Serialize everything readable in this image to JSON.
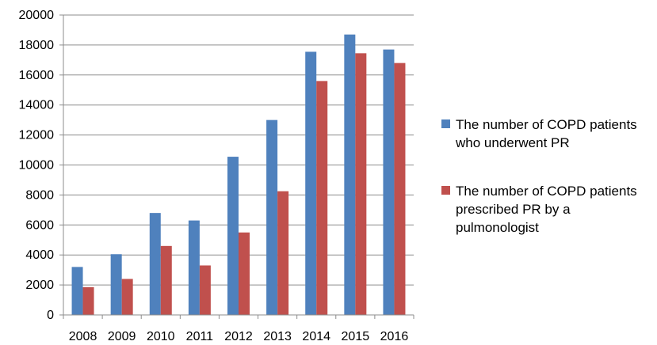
{
  "chart_data": {
    "type": "bar",
    "title": "",
    "xlabel": "",
    "ylabel": "",
    "categories": [
      "2008",
      "2009",
      "2010",
      "2011",
      "2012",
      "2013",
      "2014",
      "2015",
      "2016"
    ],
    "series": [
      {
        "name": "The number of COPD patients who underwent PR",
        "legend_lines": [
          "The number of COPD patients",
          "who underwent PR"
        ],
        "color": "#4F81BD",
        "values": [
          3200,
          4050,
          6800,
          6300,
          10550,
          13000,
          17550,
          18700,
          17700
        ]
      },
      {
        "name": "The number of COPD patients prescribed PR by a pulmonologist",
        "legend_lines": [
          "The number of COPD patients",
          "prescribed PR by a",
          "pulmonologist"
        ],
        "color": "#C0504D",
        "values": [
          1850,
          2400,
          4600,
          3300,
          5500,
          8250,
          15600,
          17450,
          16800
        ]
      }
    ],
    "ylim": [
      0,
      20000
    ],
    "yticks": [
      0,
      2000,
      4000,
      6000,
      8000,
      10000,
      12000,
      14000,
      16000,
      18000,
      20000
    ],
    "grid": true,
    "legend_position": "right"
  }
}
